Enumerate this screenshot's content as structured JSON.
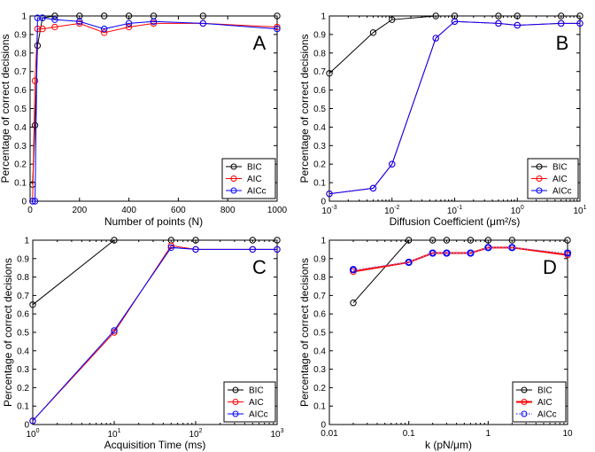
{
  "chart_data": [
    {
      "panel": "A",
      "type": "line",
      "xscale": "linear",
      "xlim": [
        0,
        1000
      ],
      "ylim": [
        0,
        1
      ],
      "xticks": [
        0,
        200,
        400,
        600,
        800,
        1000
      ],
      "xtick_labels": [
        "0",
        "200",
        "400",
        "600",
        "800",
        "1000"
      ],
      "yticks": [
        0,
        0.1,
        0.2,
        0.3,
        0.4,
        0.5,
        0.6,
        0.7,
        0.8,
        0.9,
        1
      ],
      "ytick_labels": [
        "0",
        "0.1",
        "0.2",
        "0.3",
        "0.4",
        "0.5",
        "0.6",
        "0.7",
        "0.8",
        "0.9",
        "1"
      ],
      "xlabel": "Number of points (N)",
      "ylabel": "Percentage of correct decisions",
      "legend": "bottom-right",
      "series": [
        {
          "name": "BIC",
          "color": "#000000",
          "x": [
            10,
            20,
            30,
            50,
            100,
            200,
            300,
            400,
            500,
            700,
            1000
          ],
          "y": [
            0.09,
            0.41,
            0.84,
            0.99,
            1.0,
            1.0,
            1.0,
            1.0,
            1.0,
            1.0,
            1.0
          ]
        },
        {
          "name": "AIC",
          "color": "#ff0000",
          "x": [
            10,
            20,
            30,
            50,
            100,
            200,
            300,
            400,
            500,
            700,
            1000
          ],
          "y": [
            0.0,
            0.65,
            0.93,
            0.93,
            0.94,
            0.96,
            0.91,
            0.94,
            0.96,
            0.96,
            0.94
          ]
        },
        {
          "name": "AICc",
          "color": "#0000ff",
          "x": [
            10,
            20,
            30,
            50,
            100,
            200,
            300,
            400,
            500,
            700,
            1000
          ],
          "y": [
            0.0,
            0.0,
            0.99,
            0.99,
            0.98,
            0.97,
            0.93,
            0.96,
            0.97,
            0.96,
            0.93
          ]
        }
      ]
    },
    {
      "panel": "B",
      "type": "line",
      "xscale": "log",
      "xlim": [
        0.001,
        10
      ],
      "ylim": [
        0,
        1
      ],
      "xticks": [
        0.001,
        0.01,
        0.1,
        1,
        10
      ],
      "xtick_labels": [
        "-3",
        "-2",
        "-1",
        "0",
        "1"
      ],
      "yticks": [
        0,
        0.1,
        0.2,
        0.3,
        0.4,
        0.5,
        0.6,
        0.7,
        0.8,
        0.9,
        1
      ],
      "ytick_labels": [
        "0",
        "0.1",
        "0.2",
        "0.3",
        "0.4",
        "0.5",
        "0.6",
        "0.7",
        "0.8",
        "0.9",
        "1"
      ],
      "xlabel": "Diffusion Coefficient  (μm²/s)",
      "ylabel": "Percentage of correct decisions",
      "legend": "bottom-right",
      "series": [
        {
          "name": "BIC",
          "color": "#000000",
          "x": [
            0.001,
            0.005,
            0.01,
            0.05,
            0.1,
            0.5,
            1,
            5,
            10
          ],
          "y": [
            0.69,
            0.91,
            0.98,
            1.0,
            1.0,
            1.0,
            1.0,
            1.0,
            1.0
          ]
        },
        {
          "name": "AIC",
          "color": "#ff0000",
          "x": [
            0.001,
            0.005,
            0.01,
            0.05,
            0.1,
            0.5,
            1,
            5,
            10
          ],
          "y": [
            0.04,
            0.07,
            0.2,
            0.88,
            0.97,
            0.96,
            0.95,
            0.96,
            0.96
          ]
        },
        {
          "name": "AICc",
          "color": "#0000ff",
          "x": [
            0.001,
            0.005,
            0.01,
            0.05,
            0.1,
            0.5,
            1,
            5,
            10
          ],
          "y": [
            0.04,
            0.07,
            0.2,
            0.88,
            0.97,
            0.96,
            0.95,
            0.96,
            0.96
          ]
        }
      ]
    },
    {
      "panel": "C",
      "type": "line",
      "xscale": "log",
      "xlim": [
        1,
        1000
      ],
      "ylim": [
        0,
        1
      ],
      "xticks": [
        1,
        10,
        100,
        1000
      ],
      "xtick_labels": [
        "0",
        "1",
        "2",
        "3"
      ],
      "yticks": [
        0,
        0.1,
        0.2,
        0.3,
        0.4,
        0.5,
        0.6,
        0.7,
        0.8,
        0.9,
        1
      ],
      "ytick_labels": [
        "0",
        "0.1",
        "0.2",
        "0.3",
        "0.4",
        "0.5",
        "0.6",
        "0.7",
        "0.8",
        "0.9",
        "1"
      ],
      "xlabel": "Acquisition Time (ms)",
      "ylabel": "Percentage of correct decisions",
      "legend": "bottom-right",
      "series": [
        {
          "name": "BIC",
          "color": "#000000",
          "x": [
            1,
            10,
            50,
            100,
            500,
            1000
          ],
          "y": [
            0.65,
            1.0,
            1.0,
            1.0,
            1.0,
            1.0
          ]
        },
        {
          "name": "AIC",
          "color": "#ff0000",
          "x": [
            1,
            10,
            50,
            100,
            500,
            1000
          ],
          "y": [
            0.02,
            0.5,
            0.97,
            0.95,
            0.95,
            0.95
          ]
        },
        {
          "name": "AICc",
          "color": "#0000ff",
          "x": [
            1,
            10,
            50,
            100,
            500,
            1000
          ],
          "y": [
            0.02,
            0.51,
            0.96,
            0.95,
            0.95,
            0.95
          ]
        }
      ]
    },
    {
      "panel": "D",
      "type": "line",
      "xscale": "log",
      "xlim": [
        0.01,
        10
      ],
      "ylim": [
        0,
        1
      ],
      "xticks": [
        0.01,
        0.1,
        1,
        10
      ],
      "xtick_labels": [
        "0.01",
        "0.1",
        "1",
        "10"
      ],
      "yticks": [
        0,
        0.1,
        0.2,
        0.3,
        0.4,
        0.5,
        0.6,
        0.7,
        0.8,
        0.9,
        1
      ],
      "ytick_labels": [
        "0",
        "0.1",
        "0.2",
        "0.3",
        "0.4",
        "0.5",
        "0.6",
        "0.7",
        "0.8",
        "0.9",
        "1"
      ],
      "xlabel": "k (pN/μm)",
      "ylabel": "Percentage of correct decisions",
      "legend": "bottom-right",
      "series": [
        {
          "name": "BIC",
          "color": "#000000",
          "x": [
            0.02,
            0.1,
            0.2,
            0.3,
            0.6,
            1,
            2,
            10
          ],
          "y": [
            0.66,
            1.0,
            1.0,
            1.0,
            1.0,
            1.0,
            1.0,
            1.0
          ]
        },
        {
          "name": "AIC",
          "color": "#ff0000",
          "x": [
            0.02,
            0.1,
            0.2,
            0.3,
            0.6,
            1,
            2,
            10
          ],
          "y": [
            0.83,
            0.88,
            0.93,
            0.93,
            0.93,
            0.96,
            0.96,
            0.92
          ]
        },
        {
          "name": "AICc",
          "color": "#0000ff",
          "x": [
            0.02,
            0.1,
            0.2,
            0.3,
            0.6,
            1,
            2,
            10
          ],
          "y": [
            0.84,
            0.88,
            0.93,
            0.93,
            0.93,
            0.96,
            0.96,
            0.93
          ]
        }
      ]
    }
  ]
}
